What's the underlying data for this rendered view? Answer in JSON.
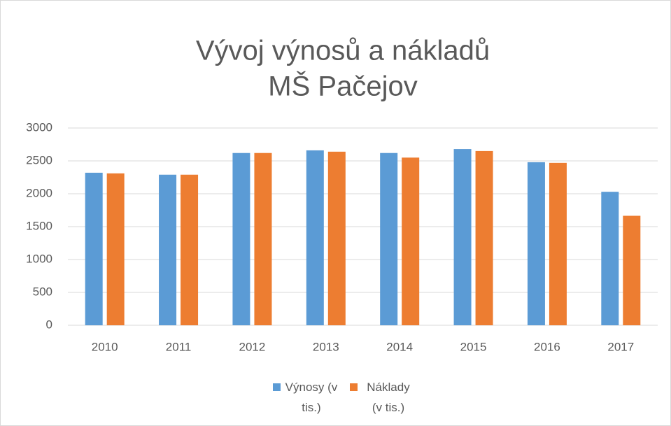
{
  "chart_data": {
    "type": "bar",
    "title": [
      "Vývoj výnosů a nákladů",
      "MŠ Pačejov"
    ],
    "categories": [
      "2010",
      "2011",
      "2012",
      "2013",
      "2014",
      "2015",
      "2016",
      "2017"
    ],
    "series": [
      {
        "name": "Výnosy (v tis.)",
        "color": "#5b9bd5",
        "values": [
          2320,
          2290,
          2620,
          2660,
          2620,
          2680,
          2480,
          2030
        ]
      },
      {
        "name": "Náklady (v tis.)",
        "color": "#ed7d31",
        "values": [
          2310,
          2290,
          2620,
          2640,
          2550,
          2650,
          2470,
          1665
        ]
      }
    ],
    "ylim": [
      0,
      3000
    ],
    "yticks": [
      0,
      500,
      1000,
      1500,
      2000,
      2500,
      3000
    ],
    "grid": true,
    "legend": "bottom"
  }
}
